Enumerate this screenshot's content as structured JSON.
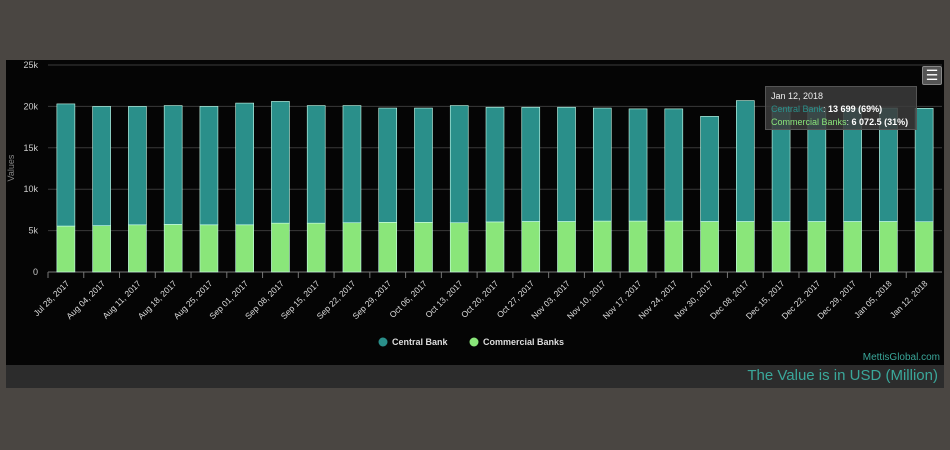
{
  "chart_data": {
    "type": "bar",
    "stacked": true,
    "categories": [
      "Jul 28, 2017",
      "Aug 04, 2017",
      "Aug 11, 2017",
      "Aug 18, 2017",
      "Aug 25, 2017",
      "Sep 01, 2017",
      "Sep 08, 2017",
      "Sep 15, 2017",
      "Sep 22, 2017",
      "Sep 29, 2017",
      "Oct 06, 2017",
      "Oct 13, 2017",
      "Oct 20, 2017",
      "Oct 27, 2017",
      "Nov 03, 2017",
      "Nov 10, 2017",
      "Nov 17, 2017",
      "Nov 24, 2017",
      "Nov 30, 2017",
      "Dec 08, 2017",
      "Dec 15, 2017",
      "Dec 22, 2017",
      "Dec 29, 2017",
      "Jan 05, 2018",
      "Jan 12, 2018"
    ],
    "series": [
      {
        "name": "Central Bank",
        "color": "#2a8f8a",
        "values": [
          14750,
          14400,
          14300,
          14350,
          14300,
          14700,
          14700,
          14200,
          14150,
          13800,
          13800,
          14150,
          13850,
          13800,
          13800,
          13650,
          13550,
          13550,
          12700,
          14600,
          13700,
          13700,
          13700,
          13700,
          13699
        ]
      },
      {
        "name": "Commercial Banks",
        "color": "#8ae67a",
        "values": [
          5550,
          5600,
          5700,
          5750,
          5700,
          5700,
          5900,
          5900,
          5950,
          6000,
          6000,
          5950,
          6050,
          6100,
          6100,
          6150,
          6150,
          6150,
          6100,
          6100,
          6100,
          6100,
          6100,
          6100,
          6072.5
        ]
      }
    ],
    "ylabel": "Values",
    "ylim": [
      0,
      25000
    ],
    "yticks": [
      "0",
      "5k",
      "10k",
      "15k",
      "20k",
      "25k"
    ],
    "grid": true,
    "legend": "bottom-center",
    "tooltip": {
      "date": "Jan 12, 2018",
      "central_label": "Central Bank",
      "central_value": "13 699 (69%)",
      "commercial_label": "Commercial Banks",
      "commercial_value": "6 072.5 (31%)"
    },
    "credit": "MettisGlobal.com"
  },
  "footer": "The Value is in USD (Million)",
  "menu_icon": "hamburger-icon"
}
